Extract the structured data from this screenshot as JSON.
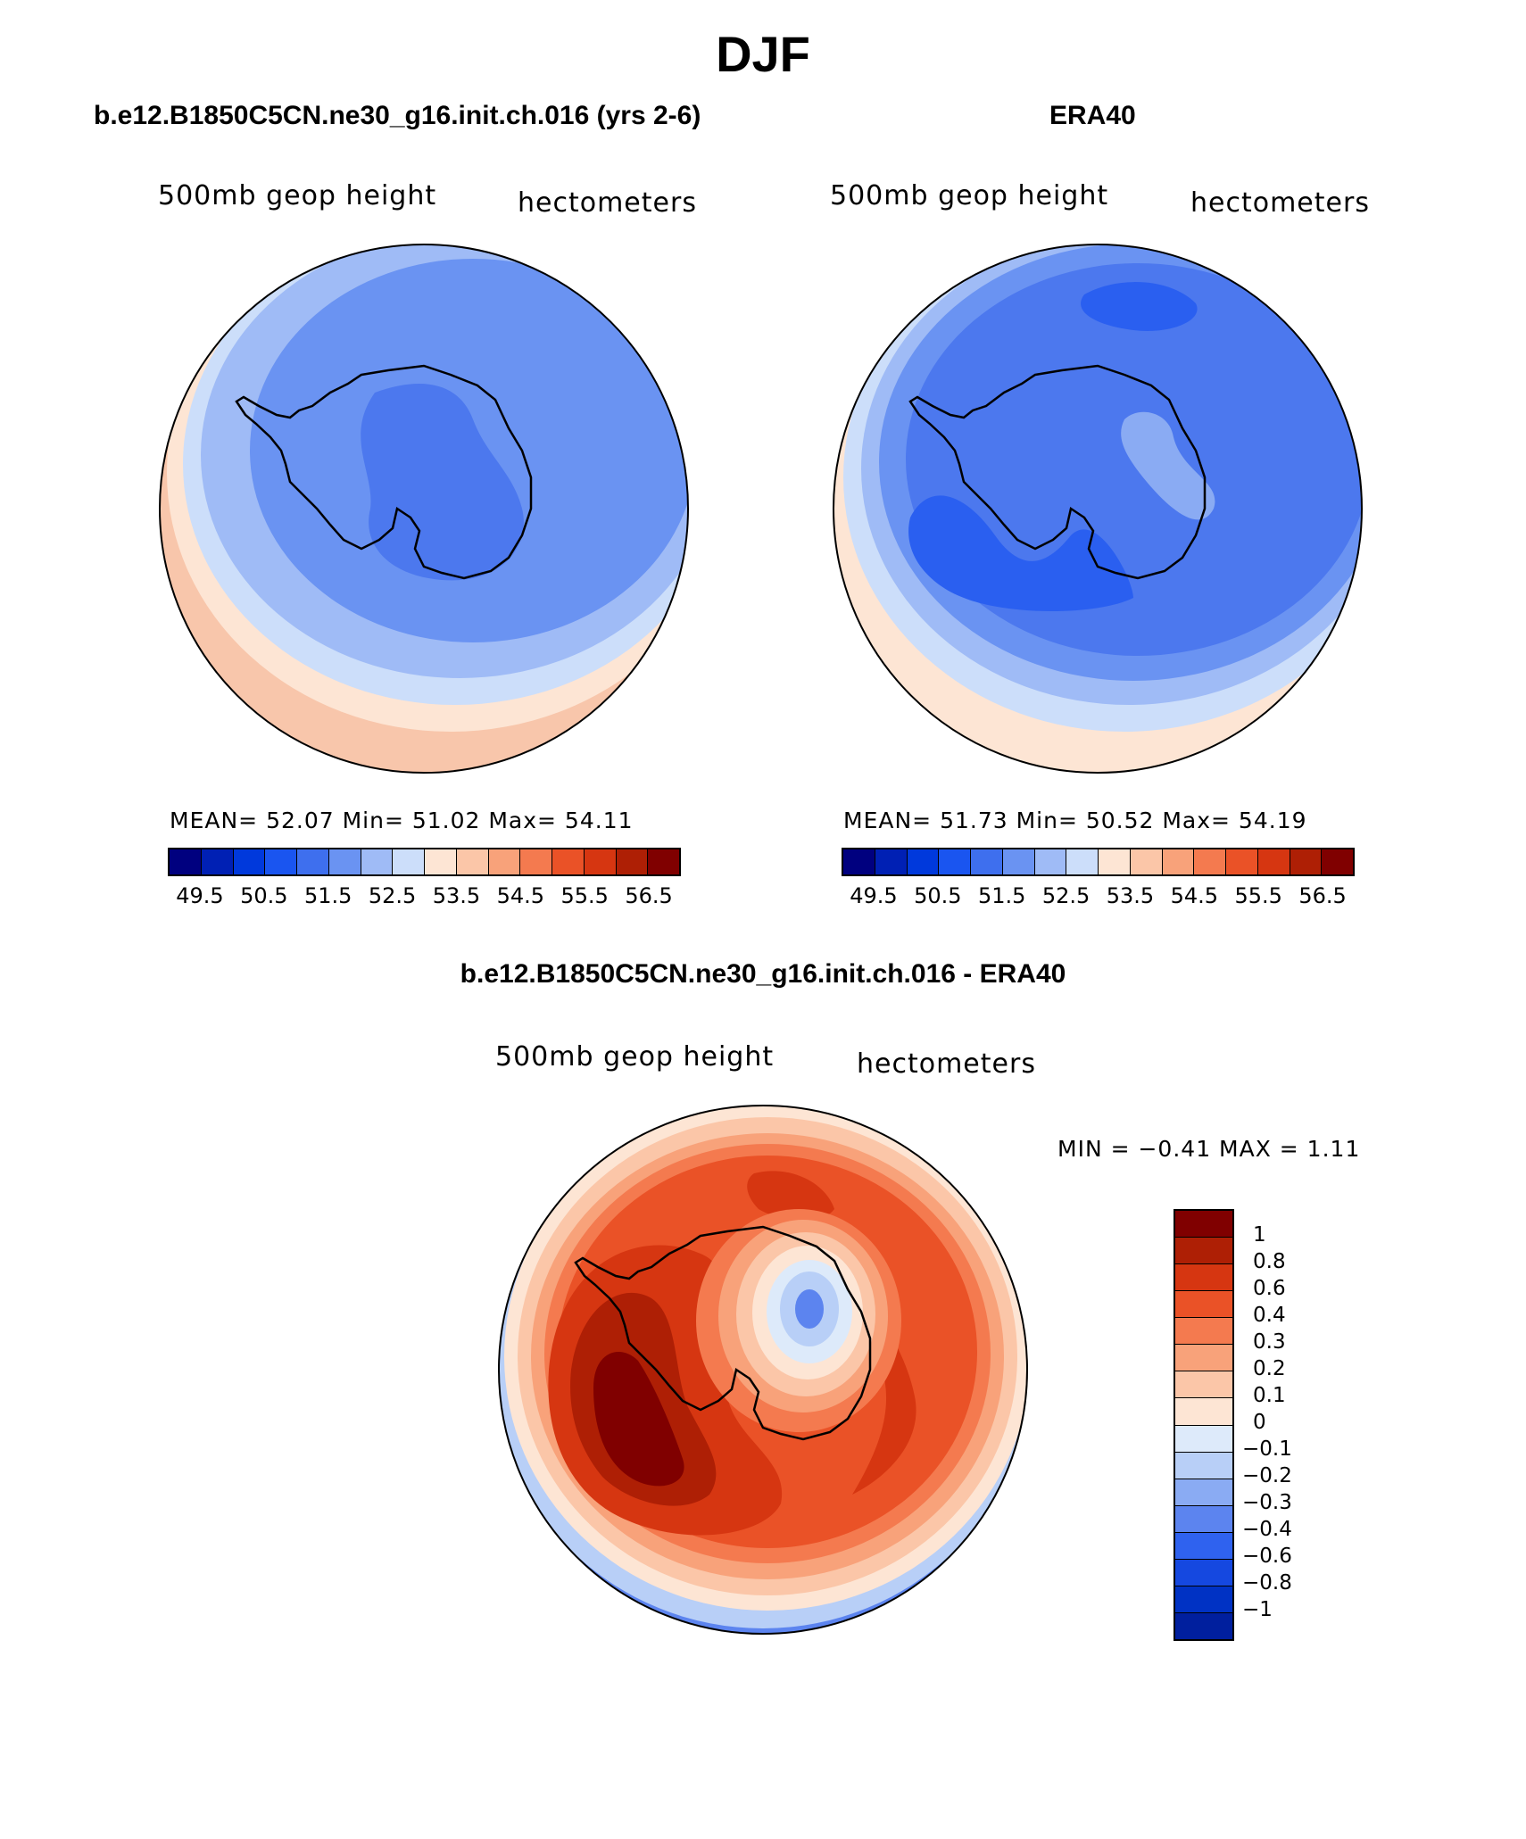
{
  "title": "DJF",
  "panels": {
    "model": {
      "title": "b.e12.B1850C5CN.ne30_g16.init.ch.016 (yrs 2-6)",
      "field": "500mb geop height",
      "units": "hectometers",
      "stats": "MEAN=   52.07   Min=   51.02   Max=   54.11",
      "mean": "52.07",
      "min": "51.02",
      "max": "54.11"
    },
    "obs": {
      "title": "ERA40",
      "field": "500mb geop height",
      "units": "hectometers",
      "stats": "MEAN=   51.73   Min=   50.52   Max=   54.19",
      "mean": "51.73",
      "min": "50.52",
      "max": "54.19"
    },
    "diff": {
      "title": "b.e12.B1850C5CN.ne30_g16.init.ch.016 - ERA40",
      "field": "500mb geop height",
      "units": "hectometers",
      "stats": "MIN =   −0.41  MAX =     1.11",
      "min": "-0.41",
      "max": "1.11"
    }
  },
  "colorbar_abs": {
    "colors": [
      "#00007f",
      "#0020b4",
      "#0039dc",
      "#1a55f0",
      "#3e6fee",
      "#6a93f2",
      "#9fbbf6",
      "#ccdefa",
      "#fde5d4",
      "#fbc6a8",
      "#f8a27a",
      "#f47a4f",
      "#ea5227",
      "#d63611",
      "#ae1f05",
      "#800000"
    ],
    "ticks": [
      "49.5",
      "50.5",
      "51.5",
      "52.5",
      "53.5",
      "54.5",
      "55.5",
      "56.5"
    ]
  },
  "colorbar_diff": {
    "colors": [
      "#800000",
      "#ae1f05",
      "#d63611",
      "#ea5227",
      "#f47a4f",
      "#f8a27a",
      "#fbc6a8",
      "#fde5d4",
      "#ddeafa",
      "#b8cff7",
      "#8aabf3",
      "#5c84ef",
      "#2f62ef",
      "#1548e0",
      "#0032c4",
      "#001f9e"
    ],
    "labels": [
      "1",
      "0.8",
      "0.6",
      "0.4",
      "0.3",
      "0.2",
      "0.1",
      "0",
      "−0.1",
      "−0.2",
      "−0.3",
      "−0.4",
      "−0.6",
      "−0.8",
      "−1"
    ]
  }
}
